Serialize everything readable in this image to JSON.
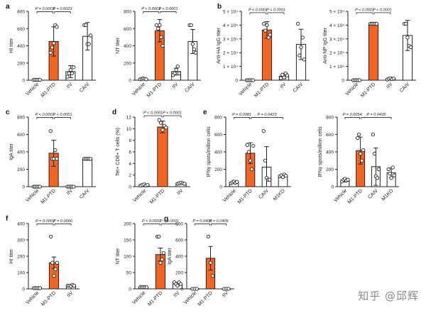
{
  "figure": {
    "watermark": "知乎 @邱辉",
    "bar_colors": {
      "treated": "#f26522",
      "default": "#ffffff",
      "stroke": "#222222"
    },
    "max_value_symbol_note": ""
  },
  "chart_data": [
    {
      "panel": "a",
      "type": "bar",
      "title": "",
      "ylabel": "HI titer",
      "show_label": true,
      "categories": [
        "Vehicle",
        "M1-PTD",
        "IIV",
        "CAIV"
      ],
      "values": [
        5,
        450,
        100,
        510
      ],
      "errors": [
        2,
        170,
        70,
        160
      ],
      "points": [
        [
          5,
          5,
          5,
          5,
          5
        ],
        [
          320,
          380,
          430,
          640,
          620
        ],
        [
          40,
          80,
          120,
          80,
          150
        ],
        [
          640,
          640,
          420,
          420,
          520
        ]
      ],
      "colors": [
        "default",
        "treated",
        "default",
        "default"
      ],
      "ylim": [
        0,
        800
      ],
      "yticks": [
        0,
        200,
        400,
        600,
        800
      ],
      "pvals": [
        {
          "from": 0,
          "to": 1,
          "text": "P = 0.0003"
        },
        {
          "from": 1,
          "to": 2,
          "text": "P = 0.0023"
        }
      ],
      "pval_y": 780
    },
    {
      "panel": "a2",
      "type": "bar",
      "title": "",
      "ylabel": "NT titer",
      "show_label": false,
      "categories": [
        "Vehicle",
        "M1-PTD",
        "IIV",
        "CAIV"
      ],
      "values": [
        15,
        575,
        100,
        450
      ],
      "errors": [
        5,
        130,
        40,
        140
      ],
      "points": [
        [
          10,
          15,
          20,
          15,
          10
        ],
        [
          640,
          600,
          640,
          500,
          400
        ],
        [
          60,
          80,
          120,
          160,
          80
        ],
        [
          640,
          640,
          420,
          360,
          320
        ]
      ],
      "colors": [
        "default",
        "treated",
        "default",
        "default"
      ],
      "ylim": [
        0,
        800
      ],
      "yticks": [
        0,
        200,
        400,
        600,
        800
      ],
      "pvals": [
        {
          "from": 0,
          "to": 1,
          "text": "P < 0.0001"
        },
        {
          "from": 1,
          "to": 2,
          "text": "P < 0.0001"
        }
      ],
      "pval_y": 780
    },
    {
      "panel": "b",
      "type": "bar",
      "title": "",
      "ylabel": "Anti-HA IgG titer",
      "show_label": true,
      "categories": [
        "Vehicle",
        "M1-PTD",
        "IIV",
        "CAIV"
      ],
      "values": [
        0,
        36500,
        3000,
        26000
      ],
      "errors": [
        0,
        6000,
        2000,
        11000
      ],
      "points": [
        [
          0,
          0,
          0,
          0,
          0
        ],
        [
          41000,
          36000,
          40000,
          31000,
          33000
        ],
        [
          1500,
          4000,
          2000,
          5000,
          3500
        ],
        [
          41000,
          18000,
          24000,
          31000,
          15000
        ]
      ],
      "colors": [
        "default",
        "treated",
        "default",
        "default"
      ],
      "ylim": [
        0,
        50000
      ],
      "yticks": [
        0,
        10000,
        20000,
        30000,
        40000,
        50000
      ],
      "ytick_labels": [
        "0",
        "1 × 10⁴",
        "2 × 10⁴",
        "3 × 10⁴",
        "4 × 10⁴",
        "5 × 10⁴"
      ],
      "pvals": [
        {
          "from": 0,
          "to": 1,
          "text": "P < 0.0001"
        },
        {
          "from": 1,
          "to": 2,
          "text": "P < 0.0001"
        }
      ],
      "pval_y": 48000
    },
    {
      "panel": "b2",
      "type": "bar",
      "title": "",
      "ylabel": "Anti-NP IgG titer",
      "show_label": false,
      "categories": [
        "Vehicle",
        "M1-PTD",
        "IIV",
        "CAIV"
      ],
      "values": [
        0,
        41000,
        1000,
        32500
      ],
      "errors": [
        0,
        300,
        800,
        11000
      ],
      "points": [
        [
          0,
          0,
          0,
          0,
          0
        ],
        [
          41000,
          41000,
          41000,
          41000,
          41000
        ],
        [
          500,
          1000,
          1500,
          800,
          1200
        ],
        [
          41000,
          41000,
          31000,
          25000,
          24000
        ]
      ],
      "colors": [
        "default",
        "treated",
        "default",
        "default"
      ],
      "ylim": [
        0,
        50000
      ],
      "yticks": [
        0,
        10000,
        20000,
        30000,
        40000,
        50000
      ],
      "ytick_labels": [
        "0",
        "1 × 10⁴",
        "2 × 10⁴",
        "3 × 10⁴",
        "4 × 10⁴",
        "5 × 10⁴"
      ],
      "pvals": [
        {
          "from": 0,
          "to": 1,
          "text": "P < 0.0001"
        },
        {
          "from": 1,
          "to": 2,
          "text": "P < 0.0001"
        }
      ],
      "pval_y": 48000
    },
    {
      "panel": "c",
      "type": "bar",
      "title": "",
      "ylabel": "IgA titer",
      "show_label": true,
      "categories": [
        "Vehicle",
        "M1-PTD",
        "IIV",
        "CAIV"
      ],
      "values": [
        0,
        385,
        0,
        320
      ],
      "errors": [
        0,
        150,
        0,
        5
      ],
      "points": [
        [
          0,
          0,
          0,
          0,
          0
        ],
        [
          640,
          320,
          320,
          420,
          320
        ],
        [
          0,
          0,
          0,
          0,
          0
        ],
        [
          320,
          320,
          320,
          320,
          320
        ]
      ],
      "colors": [
        "default",
        "treated",
        "default",
        "default"
      ],
      "ylim": [
        0,
        800
      ],
      "yticks": [
        0,
        200,
        400,
        600,
        800
      ],
      "pvals": [
        {
          "from": 0,
          "to": 1,
          "text": "P < 0.0001"
        },
        {
          "from": 1,
          "to": 2,
          "text": "P < 0.0001"
        }
      ],
      "pval_y": 780
    },
    {
      "panel": "d",
      "type": "bar",
      "title": "",
      "ylabel": "Tet+ CD8+ T cells (%)",
      "show_label": true,
      "categories": [
        "Vehicle",
        "M1-PTD",
        "IIV"
      ],
      "values": [
        0.3,
        10.3,
        0.6
      ],
      "errors": [
        0.15,
        1.0,
        0.2
      ],
      "points": [
        [
          0.2,
          0.3,
          0.4,
          0.2,
          0.3
        ],
        [
          11.5,
          11,
          9.8,
          10.5,
          10.2
        ],
        [
          0.5,
          0.6,
          0.7,
          0.6,
          0.5
        ]
      ],
      "colors": [
        "default",
        "treated",
        "default"
      ],
      "ylim": [
        0,
        12
      ],
      "yticks": [
        0,
        2,
        4,
        6,
        8,
        10,
        12
      ],
      "pvals": [
        {
          "from": 0,
          "to": 1,
          "text": "P < 0.0001"
        },
        {
          "from": 1,
          "to": 2,
          "text": "P < 0.0001"
        }
      ],
      "pval_y": 12
    },
    {
      "panel": "e",
      "type": "bar",
      "title": "",
      "ylabel": "IFNγ spots/million cells",
      "show_label": true,
      "categories": [
        "Vehicle",
        "M1-PTD",
        "CAIV",
        "M1KO"
      ],
      "values": [
        50,
        385,
        225,
        125
      ],
      "errors": [
        10,
        120,
        235,
        15
      ],
      "points": [
        [
          40,
          50,
          60,
          45,
          55
        ],
        [
          480,
          400,
          300,
          200,
          470
        ],
        [
          640,
          300,
          100,
          80,
          80
        ],
        [
          120,
          130,
          110,
          140,
          125
        ]
      ],
      "colors": [
        "default",
        "treated",
        "default",
        "default"
      ],
      "ylim": [
        0,
        800
      ],
      "yticks": [
        0,
        200,
        400,
        600,
        800
      ],
      "pvals": [
        {
          "from": 0,
          "to": 1,
          "text": "P = 0.0081"
        },
        {
          "from": 1,
          "to": 3,
          "text": "P = 0.0423"
        }
      ],
      "pval_y": 780
    },
    {
      "panel": "e2",
      "type": "bar",
      "title": "",
      "ylabel": "IFNγ spots/million cells",
      "show_label": false,
      "categories": [
        "Vehicle",
        "M1-PTD",
        "CAIV",
        "M1KO"
      ],
      "values": [
        75,
        415,
        230,
        160
      ],
      "errors": [
        20,
        155,
        215,
        55
      ],
      "points": [
        [
          60,
          80,
          90,
          70,
          80
        ],
        [
          560,
          600,
          380,
          300,
          420
        ],
        [
          600,
          380,
          120,
          100,
          200
        ],
        [
          200,
          150,
          100,
          220,
          130
        ]
      ],
      "colors": [
        "default",
        "treated",
        "default",
        "default"
      ],
      "ylim": [
        0,
        800
      ],
      "yticks": [
        0,
        200,
        400,
        600,
        800
      ],
      "pvals": [
        {
          "from": 0,
          "to": 1,
          "text": "P = 0.0054"
        },
        {
          "from": 1,
          "to": 3,
          "text": "P = 0.0435"
        }
      ],
      "pval_y": 780
    },
    {
      "panel": "f",
      "type": "bar",
      "title": "",
      "ylabel": "HI titer",
      "show_label": true,
      "categories": [
        "Vehicle",
        "M1-PTD",
        "IIV"
      ],
      "values": [
        5,
        160,
        20
      ],
      "errors": [
        2,
        35,
        5
      ],
      "points": [
        [
          5,
          5,
          5,
          5,
          5
        ],
        [
          320,
          160,
          80,
          120,
          160
        ],
        [
          20,
          20,
          15,
          25,
          20
        ]
      ],
      "colors": [
        "default",
        "treated",
        "default"
      ],
      "ylim": [
        0,
        400
      ],
      "yticks": [
        0,
        100,
        200,
        300,
        400
      ],
      "pvals": [
        {
          "from": 0,
          "to": 1,
          "text": "P = 0.0002"
        },
        {
          "from": 1,
          "to": 2,
          "text": "P = 0.0006"
        }
      ],
      "pval_y": 390
    },
    {
      "panel": "f2",
      "type": "bar",
      "title": "",
      "ylabel": "NT titer",
      "show_label": false,
      "categories": [
        "Vehicle",
        "M1-PTD",
        "IIV"
      ],
      "values": [
        5,
        105,
        15
      ],
      "errors": [
        2,
        20,
        5
      ],
      "points": [
        [
          5,
          5,
          5,
          5,
          5
        ],
        [
          160,
          160,
          80,
          90,
          110
        ],
        [
          20,
          15,
          10,
          20,
          15
        ]
      ],
      "colors": [
        "default",
        "treated",
        "default"
      ],
      "ylim": [
        0,
        200
      ],
      "yticks": [
        0,
        50,
        100,
        150,
        200
      ],
      "pvals": [
        {
          "from": 0,
          "to": 1,
          "text": "P < 0.0001"
        },
        {
          "from": 1,
          "to": 2,
          "text": "P < 0.0001"
        }
      ],
      "pval_y": 195
    },
    {
      "panel": "g",
      "type": "bar",
      "title": "",
      "ylabel": "IgA titer",
      "show_label": true,
      "categories": [
        "Vehicle",
        "M1-PTD",
        "IIV"
      ],
      "values": [
        0,
        375,
        0
      ],
      "errors": [
        0,
        145,
        0
      ],
      "points": [
        [
          0,
          0,
          0
        ],
        [
          640,
          320,
          160
        ],
        [
          0,
          0,
          0
        ]
      ],
      "colors": [
        "default",
        "treated",
        "default"
      ],
      "ylim": [
        0,
        800
      ],
      "yticks": [
        0,
        200,
        400,
        600,
        800
      ],
      "pvals": [
        {
          "from": 0,
          "to": 1,
          "text": "P = 0.0405"
        },
        {
          "from": 1,
          "to": 2,
          "text": "P = 0.0405"
        }
      ],
      "pval_y": 780
    }
  ]
}
